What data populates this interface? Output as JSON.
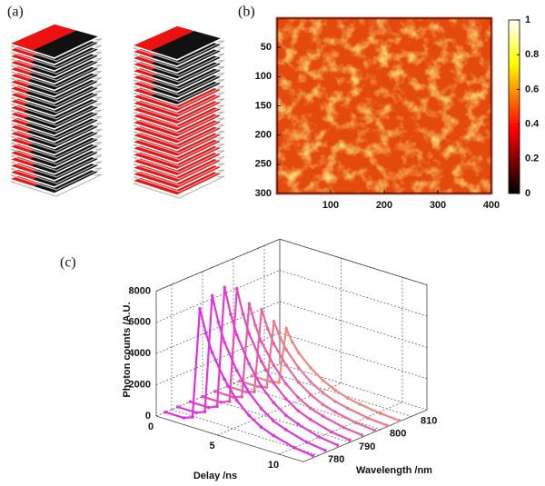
{
  "panel_labels": [
    "(a)",
    "(b)",
    "(c)"
  ],
  "chart_data": [
    {
      "type": "heatmap",
      "colormap": "hot",
      "xlim": [
        0,
        400
      ],
      "xticks": [
        100,
        200,
        300,
        400
      ],
      "ylim": [
        300,
        0
      ],
      "yticks": [
        50,
        100,
        150,
        200,
        250,
        300
      ],
      "colorbar": {
        "lim": [
          0,
          1
        ],
        "ticks": [
          0,
          0.2,
          0.4,
          0.6,
          0.8,
          1
        ]
      }
    },
    {
      "type": "waterfall3d",
      "xlabel": "Delay /ns",
      "ylabel": "Wavelength /nm",
      "zlabel": "Photon counts /A.U.",
      "x": [
        0,
        1.5,
        2.2,
        2.8,
        3.3,
        3.8,
        4.8,
        5.8,
        6.8,
        7.8,
        8.8,
        10.5,
        12
      ],
      "xlim": [
        0,
        12
      ],
      "xticks": [
        0,
        5,
        10
      ],
      "ylim": [
        775,
        815
      ],
      "yticks": [
        780,
        790,
        800,
        810
      ],
      "zlim": [
        0,
        8000
      ],
      "zticks": [
        0,
        2000,
        4000,
        6000,
        8000
      ],
      "grid": true,
      "series": [
        {
          "wavelength": 778,
          "color": "#e22ee2",
          "values": [
            0,
            0,
            220,
            7300,
            5840,
            4750,
            3290,
            2190,
            1460,
            950,
            660,
            290,
            150
          ]
        },
        {
          "wavelength": 782,
          "color": "#e035d8",
          "values": [
            0,
            0,
            230,
            7800,
            6240,
            5070,
            3510,
            2340,
            1560,
            1010,
            700,
            310,
            160
          ]
        },
        {
          "wavelength": 786,
          "color": "#e23ccc",
          "values": [
            0,
            0,
            240,
            8000,
            6400,
            5200,
            3600,
            2400,
            1600,
            1040,
            720,
            320,
            160
          ]
        },
        {
          "wavelength": 790,
          "color": "#e448bf",
          "values": [
            0,
            0,
            230,
            7600,
            6080,
            4940,
            3420,
            2280,
            1520,
            990,
            680,
            300,
            150
          ]
        },
        {
          "wavelength": 794,
          "color": "#e659ae",
          "values": [
            0,
            0,
            190,
            6300,
            5040,
            4100,
            2840,
            1890,
            1260,
            820,
            570,
            250,
            130
          ]
        },
        {
          "wavelength": 798,
          "color": "#e8689e",
          "values": [
            0,
            0,
            170,
            5600,
            4480,
            3640,
            2520,
            1680,
            1120,
            730,
            500,
            220,
            110
          ]
        },
        {
          "wavelength": 802,
          "color": "#ea7890",
          "values": [
            0,
            0,
            140,
            4500,
            3600,
            2930,
            2030,
            1350,
            900,
            590,
            410,
            180,
            90
          ]
        },
        {
          "wavelength": 806,
          "color": "#ec8880",
          "values": [
            0,
            0,
            110,
            3700,
            2960,
            2410,
            1670,
            1110,
            740,
            480,
            330,
            150,
            70
          ]
        }
      ]
    }
  ]
}
